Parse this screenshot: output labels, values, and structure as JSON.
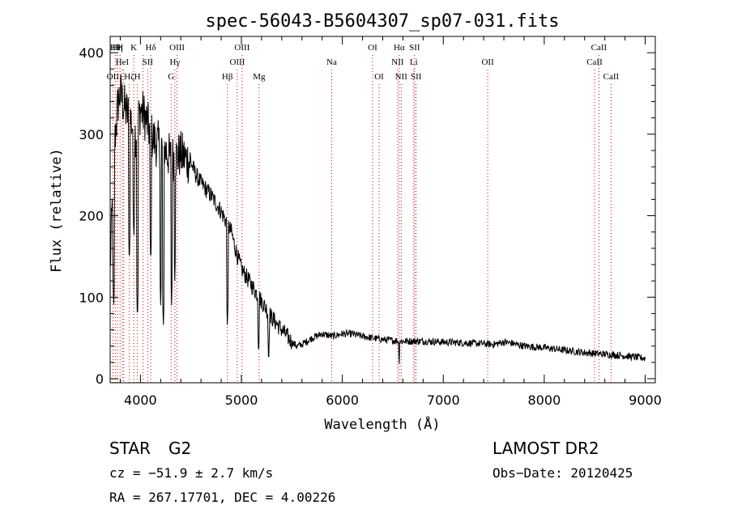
{
  "chart_data": {
    "type": "line",
    "title": "spec-56043-B5604307_sp07-031.fits",
    "xlabel": "Wavelength (Å)",
    "ylabel": "Flux (relative)",
    "xlim": [
      3700,
      9100
    ],
    "ylim": [
      -5,
      420
    ],
    "xticks": [
      4000,
      5000,
      6000,
      7000,
      8000,
      9000
    ],
    "yticks": [
      0,
      100,
      200,
      300,
      400
    ],
    "grid": false,
    "line_color": "#000000",
    "marker_color": "#cc0000",
    "spectral_lines": [
      {
        "wl": 3727,
        "label": "OII",
        "row": 3
      },
      {
        "wl": 3750,
        "label": "Hθ",
        "row": 1
      },
      {
        "wl": 3771,
        "label": "Hη",
        "row": 1
      },
      {
        "wl": 3798,
        "label": "H",
        "row": 1
      },
      {
        "wl": 3820,
        "label": "HeI",
        "row": 2
      },
      {
        "wl": 3835,
        "label": "",
        "row": 2
      },
      {
        "wl": 3889,
        "label": "Hζ",
        "row": 3
      },
      {
        "wl": 3934,
        "label": "K",
        "row": 1
      },
      {
        "wl": 3970,
        "label": "H",
        "row": 3
      },
      {
        "wl": 4026,
        "label": "",
        "row": 0
      },
      {
        "wl": 4072,
        "label": "SII",
        "row": 2
      },
      {
        "wl": 4102,
        "label": "Hδ",
        "row": 1
      },
      {
        "wl": 4304,
        "label": "G",
        "row": 3
      },
      {
        "wl": 4341,
        "label": "Hγ",
        "row": 2
      },
      {
        "wl": 4363,
        "label": "OIII",
        "row": 1
      },
      {
        "wl": 4861,
        "label": "Hβ",
        "row": 3
      },
      {
        "wl": 4959,
        "label": "OIII",
        "row": 2
      },
      {
        "wl": 5007,
        "label": "OIII",
        "row": 1
      },
      {
        "wl": 5175,
        "label": "Mg",
        "row": 3
      },
      {
        "wl": 5894,
        "label": "Na",
        "row": 2
      },
      {
        "wl": 6300,
        "label": "OI",
        "row": 1
      },
      {
        "wl": 6364,
        "label": "OI",
        "row": 3
      },
      {
        "wl": 6548,
        "label": "NII",
        "row": 2
      },
      {
        "wl": 6563,
        "label": "Hα",
        "row": 1
      },
      {
        "wl": 6583,
        "label": "NII",
        "row": 3
      },
      {
        "wl": 6707,
        "label": "Li",
        "row": 2
      },
      {
        "wl": 6716,
        "label": "SII",
        "row": 1
      },
      {
        "wl": 6731,
        "label": "SII",
        "row": 3
      },
      {
        "wl": 7440,
        "label": "OII",
        "row": 2
      },
      {
        "wl": 8498,
        "label": "CaII",
        "row": 2
      },
      {
        "wl": 8542,
        "label": "CaII",
        "row": 1
      },
      {
        "wl": 8662,
        "label": "CaII",
        "row": 3
      }
    ],
    "anchors": [
      [
        3700,
        135
      ],
      [
        3720,
        210
      ],
      [
        3750,
        300
      ],
      [
        3780,
        340
      ],
      [
        3800,
        350
      ],
      [
        3850,
        330
      ],
      [
        3900,
        320
      ],
      [
        3950,
        300
      ],
      [
        4000,
        330
      ],
      [
        4050,
        320
      ],
      [
        4100,
        300
      ],
      [
        4150,
        290
      ],
      [
        4200,
        285
      ],
      [
        4250,
        280
      ],
      [
        4300,
        270
      ],
      [
        4400,
        275
      ],
      [
        4500,
        265
      ],
      [
        4550,
        250
      ],
      [
        4600,
        240
      ],
      [
        4700,
        225
      ],
      [
        4800,
        205
      ],
      [
        4900,
        180
      ],
      [
        4950,
        155
      ],
      [
        5000,
        135
      ],
      [
        5050,
        125
      ],
      [
        5100,
        115
      ],
      [
        5200,
        95
      ],
      [
        5300,
        75
      ],
      [
        5400,
        60
      ],
      [
        5500,
        45
      ],
      [
        5550,
        40
      ],
      [
        5600,
        42
      ],
      [
        5700,
        50
      ],
      [
        5800,
        55
      ],
      [
        5900,
        52
      ],
      [
        6000,
        55
      ],
      [
        6100,
        55
      ],
      [
        6200,
        52
      ],
      [
        6300,
        50
      ],
      [
        6400,
        48
      ],
      [
        6500,
        47
      ],
      [
        6600,
        46
      ],
      [
        6700,
        46
      ],
      [
        6800,
        46
      ],
      [
        7000,
        45
      ],
      [
        7200,
        44
      ],
      [
        7400,
        43
      ],
      [
        7500,
        42
      ],
      [
        7600,
        45
      ],
      [
        7700,
        43
      ],
      [
        7800,
        40
      ],
      [
        8000,
        38
      ],
      [
        8200,
        35
      ],
      [
        8400,
        32
      ],
      [
        8600,
        30
      ],
      [
        8800,
        28
      ],
      [
        9000,
        25
      ]
    ],
    "dips": [
      [
        3735,
        85
      ],
      [
        3890,
        140
      ],
      [
        3935,
        170
      ],
      [
        3970,
        70
      ],
      [
        4102,
        140
      ],
      [
        4200,
        90
      ],
      [
        4227,
        60
      ],
      [
        4308,
        90
      ],
      [
        4340,
        120
      ],
      [
        4861,
        60
      ],
      [
        5170,
        25
      ],
      [
        5270,
        15
      ],
      [
        5600,
        40
      ],
      [
        6563,
        12
      ]
    ]
  },
  "info": {
    "object_class": "STAR",
    "subclass": "G2",
    "survey": "LAMOST DR2",
    "cz": "cz = −51.9 ± 2.7 km/s",
    "obs_date": "Obs−Date: 20120425",
    "coords": "RA = 267.17701, DEC =   4.00226"
  }
}
